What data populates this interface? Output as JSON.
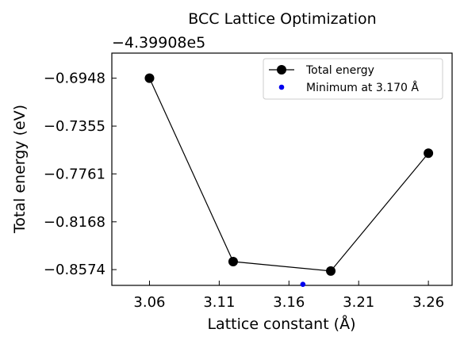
{
  "chart_data": {
    "type": "line",
    "title": "BCC Lattice Optimization",
    "xlabel": "Lattice constant (Å)",
    "ylabel": "Total energy (eV)",
    "offset_label": "−4.39908e5",
    "xlim": [
      3.033,
      3.277
    ],
    "ylim": [
      -0.8708,
      -0.6735
    ],
    "x_ticks": [
      3.06,
      3.11,
      3.16,
      3.21,
      3.26
    ],
    "x_tick_labels": [
      "3.06",
      "3.11",
      "3.16",
      "3.21",
      "3.26"
    ],
    "y_ticks": [
      -0.6948,
      -0.7355,
      -0.7761,
      -0.8168,
      -0.8574
    ],
    "y_tick_labels": [
      "−0.6948",
      "−0.7355",
      "−0.7761",
      "−0.8168",
      "−0.8574"
    ],
    "grid": false,
    "legend_position": "upper right",
    "series": [
      {
        "name": "Total energy",
        "color": "#000000",
        "marker": "circle",
        "x": [
          3.06,
          3.12,
          3.19,
          3.26
        ],
        "y": [
          -0.6948,
          -0.8506,
          -0.8586,
          -0.7585
        ]
      },
      {
        "name": "Minimum at 3.170 Å",
        "color": "#0000ee",
        "marker": "dot",
        "x": [
          3.17
        ],
        "y": [
          -0.8699
        ]
      }
    ]
  }
}
